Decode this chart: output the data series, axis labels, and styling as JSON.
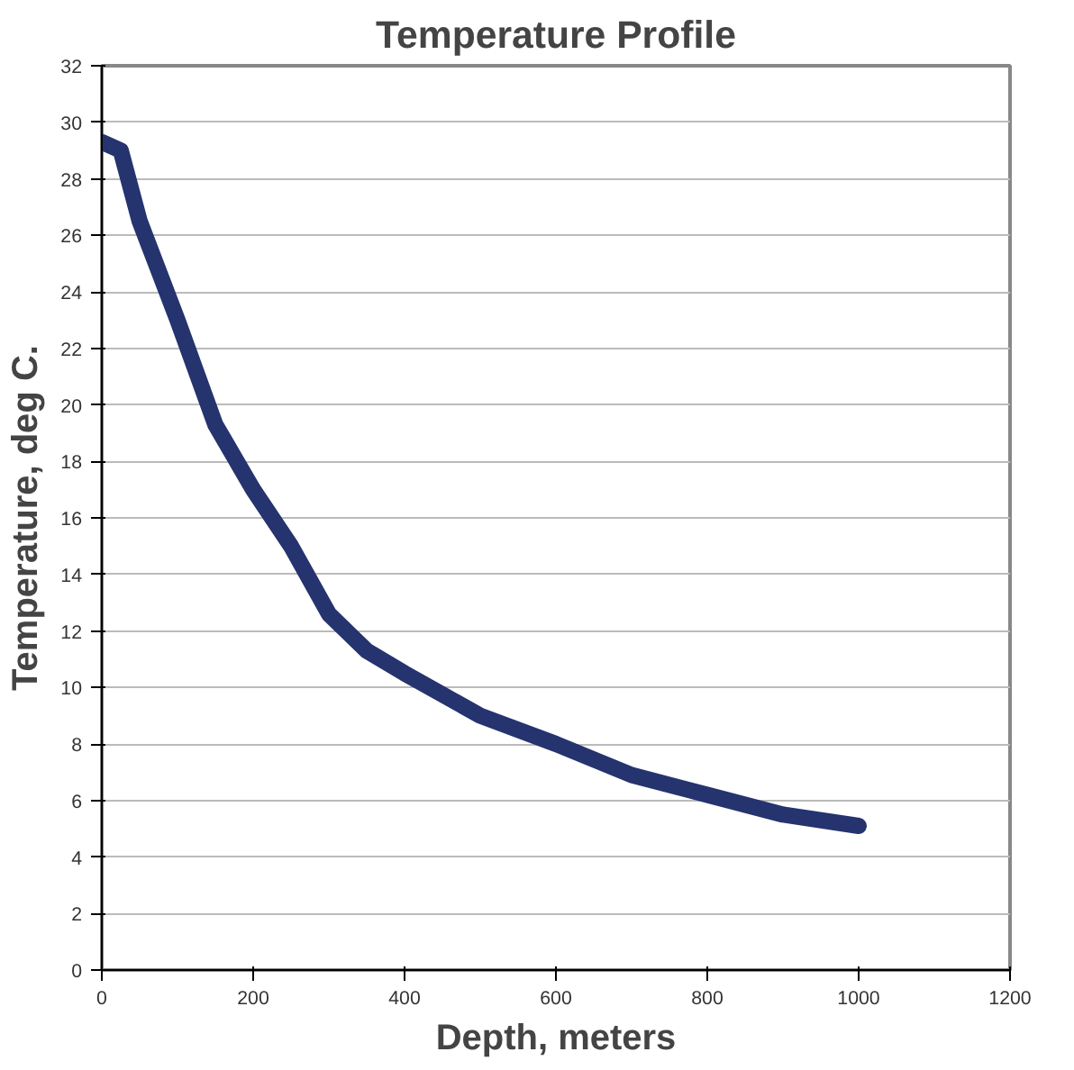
{
  "chart_data": {
    "type": "line",
    "title": "Temperature Profile",
    "xlabel": "Depth, meters",
    "ylabel": "Temperature, deg C.",
    "series": [
      {
        "color": "#25336f",
        "x": [
          0,
          25,
          50,
          100,
          150,
          200,
          250,
          300,
          350,
          400,
          500,
          600,
          700,
          800,
          900,
          1000
        ],
        "values": [
          29.3,
          29,
          26.5,
          23,
          19.3,
          17,
          15,
          12.6,
          11.3,
          10.5,
          9,
          8,
          6.9,
          6.2,
          5.5,
          5.1
        ]
      }
    ],
    "xlim": [
      0,
      1200
    ],
    "xticks": [
      0,
      200,
      400,
      600,
      800,
      1000,
      1200
    ],
    "ylim": [
      0,
      32
    ],
    "yticks": [
      0,
      2,
      4,
      6,
      8,
      10,
      12,
      14,
      16,
      18,
      20,
      22,
      24,
      26,
      28,
      30,
      32
    ],
    "grid": "y",
    "marker": "none",
    "line_style": "solid"
  }
}
